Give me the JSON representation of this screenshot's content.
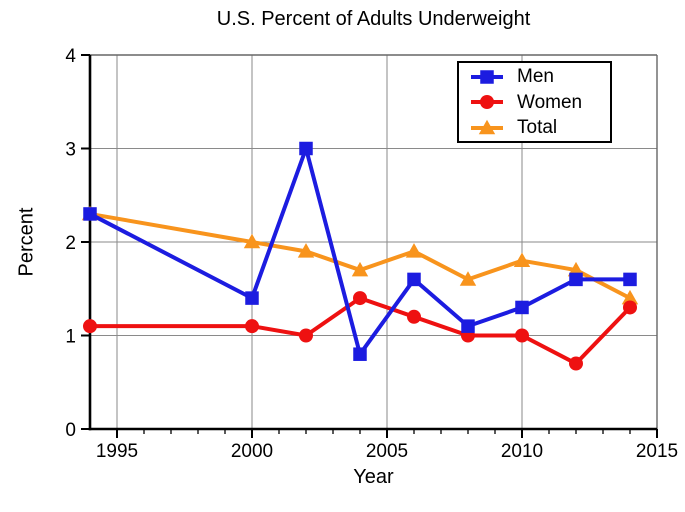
{
  "title": "U.S. Percent of Adults Underweight",
  "chart_data": {
    "type": "line",
    "title": "U.S. Percent of Adults Underweight",
    "xlabel": "Year",
    "ylabel": "Percent",
    "xlim": [
      1994,
      2015
    ],
    "ylim": [
      0,
      4
    ],
    "x_major_ticks": [
      1995,
      2000,
      2005,
      2010,
      2015
    ],
    "x_minor_tick_step": 1,
    "y_major_ticks": [
      0,
      1,
      2,
      3,
      4
    ],
    "grid": true,
    "legend_position": "top-right",
    "legend_entries": [
      "Men",
      "Women",
      "Total"
    ],
    "x": [
      1994,
      2000,
      2002,
      2004,
      2006,
      2008,
      2010,
      2012,
      2014
    ],
    "series": [
      {
        "name": "Men",
        "marker": "square",
        "color": "#1c1ce0",
        "values": [
          2.3,
          1.4,
          3.0,
          0.8,
          1.6,
          1.1,
          1.3,
          1.6,
          1.6
        ]
      },
      {
        "name": "Women",
        "marker": "circle",
        "color": "#ee1111",
        "values": [
          1.1,
          1.1,
          1.0,
          1.4,
          1.2,
          1.0,
          1.0,
          0.7,
          1.3
        ]
      },
      {
        "name": "Total",
        "marker": "triangle",
        "color": "#f8941d",
        "values": [
          2.3,
          2.0,
          1.9,
          1.7,
          1.9,
          1.6,
          1.8,
          1.7,
          1.4
        ]
      }
    ]
  },
  "colors": {
    "grid": "#8a8a8a",
    "frame": "#666666",
    "axis": "#000000",
    "legend_border": "#000000",
    "background": "#ffffff",
    "text": "#000000"
  }
}
